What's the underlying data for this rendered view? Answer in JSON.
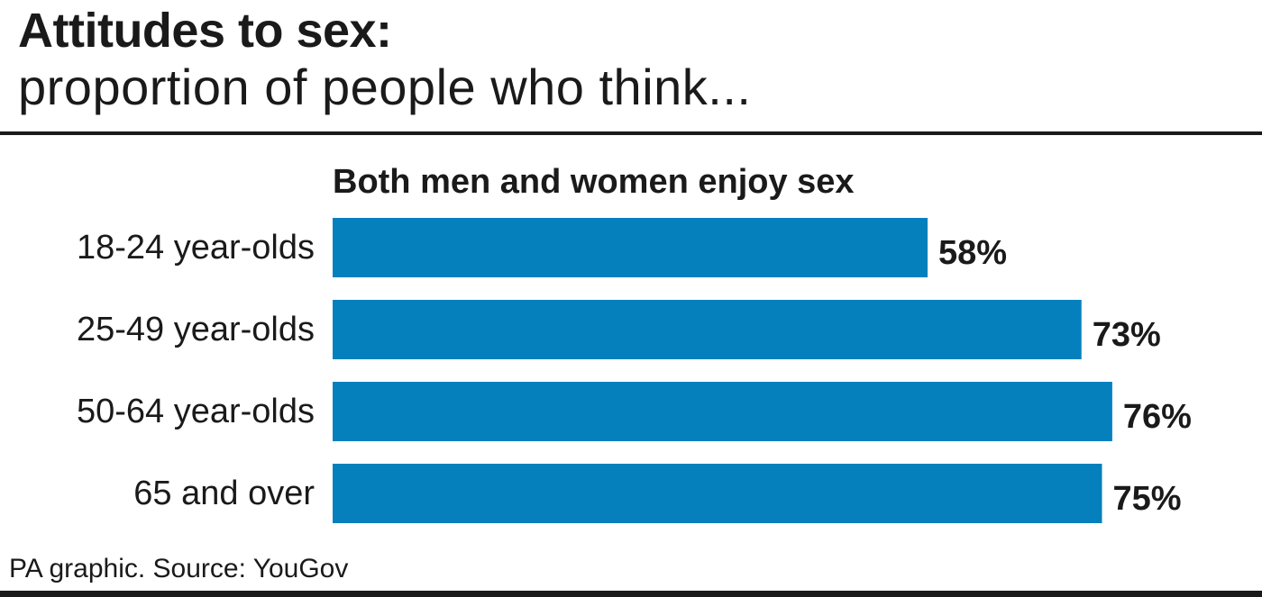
{
  "header": {
    "title": "Attitudes to sex:",
    "subtitle": "proportion of people who think..."
  },
  "footer": {
    "source": "PA graphic. Source: YouGov"
  },
  "colors": {
    "bar": "#0580bd",
    "text": "#1a1a1a"
  },
  "chart_data": {
    "type": "bar",
    "orientation": "horizontal",
    "title": "Both men and women enjoy sex",
    "categories": [
      "18-24 year-olds",
      "25-49 year-olds",
      "50-64 year-olds",
      "65 and over"
    ],
    "values": [
      58,
      73,
      76,
      75
    ],
    "value_labels": [
      "58%",
      "73%",
      "76%",
      "75%"
    ],
    "xlim": [
      0,
      100
    ],
    "unit": "%",
    "grid": false
  }
}
